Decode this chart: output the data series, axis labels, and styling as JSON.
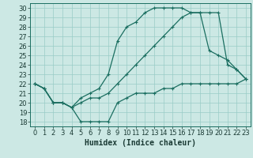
{
  "bg_color": "#cce8e4",
  "grid_color": "#99ccc6",
  "line_color": "#1a6e60",
  "line1_x": [
    0,
    1,
    2,
    3,
    4,
    5,
    6,
    7,
    8,
    9,
    10,
    11,
    12,
    13,
    14,
    15,
    16,
    17,
    18,
    19,
    20,
    21,
    22,
    23
  ],
  "line1_y": [
    22,
    21.5,
    20,
    20,
    19.5,
    18,
    18,
    18,
    18,
    20,
    20.5,
    21,
    21,
    21,
    21.5,
    21.5,
    22,
    22,
    22,
    22,
    22,
    22,
    22,
    22.5
  ],
  "line2_x": [
    0,
    1,
    2,
    3,
    4,
    5,
    6,
    7,
    8,
    9,
    10,
    11,
    12,
    13,
    14,
    15,
    16,
    17,
    18,
    19,
    20,
    21,
    22,
    23
  ],
  "line2_y": [
    22,
    21.5,
    20,
    20,
    19.5,
    20,
    20.5,
    20.5,
    21,
    22,
    23,
    24,
    25,
    26,
    27,
    28,
    29,
    29.5,
    29.5,
    25.5,
    25,
    24.5,
    23.5,
    22.5
  ],
  "line3_x": [
    0,
    1,
    2,
    3,
    4,
    5,
    6,
    7,
    8,
    9,
    10,
    11,
    12,
    13,
    14,
    15,
    16,
    17,
    18,
    19,
    20,
    21,
    22,
    23
  ],
  "line3_y": [
    22,
    21.5,
    20,
    20,
    19.5,
    20.5,
    21,
    21.5,
    23,
    26.5,
    28,
    28.5,
    29.5,
    30,
    30,
    30,
    30,
    29.5,
    29.5,
    29.5,
    29.5,
    24,
    23.5,
    22.5
  ],
  "xlim": [
    -0.5,
    23.5
  ],
  "ylim": [
    17.5,
    30.5
  ],
  "xlabel": "Humidex (Indice chaleur)",
  "xticks": [
    0,
    1,
    2,
    3,
    4,
    5,
    6,
    7,
    8,
    9,
    10,
    11,
    12,
    13,
    14,
    15,
    16,
    17,
    18,
    19,
    20,
    21,
    22,
    23
  ],
  "yticks": [
    18,
    19,
    20,
    21,
    22,
    23,
    24,
    25,
    26,
    27,
    28,
    29,
    30
  ],
  "marker": "+",
  "markersize": 3,
  "linewidth": 0.9,
  "xlabel_fontsize": 7,
  "tick_fontsize": 6
}
